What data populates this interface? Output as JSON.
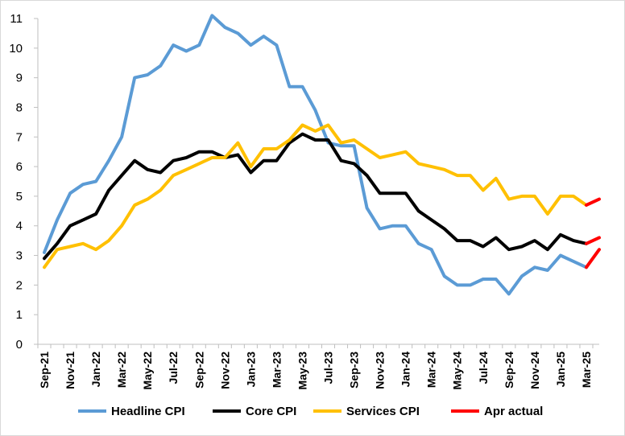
{
  "chart_data": {
    "type": "line",
    "title": "",
    "xlabel": "",
    "ylabel": "",
    "ylim": [
      0,
      11
    ],
    "yticks": [
      "0",
      "1",
      "2",
      "3",
      "4",
      "5",
      "6",
      "7",
      "8",
      "9",
      "10",
      "11"
    ],
    "grid": false,
    "legend_position": "bottom",
    "x": [
      "Sep-21",
      "Oct-21",
      "Nov-21",
      "Dec-21",
      "Jan-22",
      "Feb-22",
      "Mar-22",
      "Apr-22",
      "May-22",
      "Jun-22",
      "Jul-22",
      "Aug-22",
      "Sep-22",
      "Oct-22",
      "Nov-22",
      "Dec-22",
      "Jan-23",
      "Feb-23",
      "Mar-23",
      "Apr-23",
      "May-23",
      "Jun-23",
      "Jul-23",
      "Aug-23",
      "Sep-23",
      "Oct-23",
      "Nov-23",
      "Dec-23",
      "Jan-24",
      "Feb-24",
      "Mar-24",
      "Apr-24",
      "May-24",
      "Jun-24",
      "Jul-24",
      "Aug-24",
      "Sep-24",
      "Oct-24",
      "Nov-24",
      "Dec-24",
      "Jan-25",
      "Feb-25",
      "Mar-25",
      "Apr-25"
    ],
    "x_tick_labels": [
      "Sep-21",
      "Nov-21",
      "Jan-22",
      "Mar-22",
      "May-22",
      "Jul-22",
      "Sep-22",
      "Nov-22",
      "Jan-23",
      "Mar-23",
      "May-23",
      "Jul-23",
      "Sep-23",
      "Nov-23",
      "Jan-24",
      "Mar-24",
      "May-24",
      "Jul-24",
      "Sep-24",
      "Nov-24",
      "Jan-25",
      "Mar-25"
    ],
    "series": [
      {
        "name": "Headline CPI",
        "color": "#5b9bd5",
        "values": [
          3.1,
          4.2,
          5.1,
          5.4,
          5.5,
          6.2,
          7.0,
          9.0,
          9.1,
          9.4,
          10.1,
          9.9,
          10.1,
          11.1,
          10.7,
          10.5,
          10.1,
          10.4,
          10.1,
          8.7,
          8.7,
          7.9,
          6.8,
          6.7,
          6.7,
          4.6,
          3.9,
          4.0,
          4.0,
          3.4,
          3.2,
          2.3,
          2.0,
          2.0,
          2.2,
          2.2,
          1.7,
          2.3,
          2.6,
          2.5,
          3.0,
          2.8,
          2.6,
          null
        ]
      },
      {
        "name": "Core CPI",
        "color": "#000000",
        "values": [
          2.9,
          3.4,
          4.0,
          4.2,
          4.4,
          5.2,
          5.7,
          6.2,
          5.9,
          5.8,
          6.2,
          6.3,
          6.5,
          6.5,
          6.3,
          6.4,
          5.8,
          6.2,
          6.2,
          6.8,
          7.1,
          6.9,
          6.9,
          6.2,
          6.1,
          5.7,
          5.1,
          5.1,
          5.1,
          4.5,
          4.2,
          3.9,
          3.5,
          3.5,
          3.3,
          3.6,
          3.2,
          3.3,
          3.5,
          3.2,
          3.7,
          3.5,
          3.4,
          null
        ]
      },
      {
        "name": "Services CPI",
        "color": "#ffc000",
        "values": [
          2.6,
          3.2,
          3.3,
          3.4,
          3.2,
          3.5,
          4.0,
          4.7,
          4.9,
          5.2,
          5.7,
          5.9,
          6.1,
          6.3,
          6.3,
          6.8,
          6.0,
          6.6,
          6.6,
          6.9,
          7.4,
          7.2,
          7.4,
          6.8,
          6.9,
          6.6,
          6.3,
          6.4,
          6.5,
          6.1,
          6.0,
          5.9,
          5.7,
          5.7,
          5.2,
          5.6,
          4.9,
          5.0,
          5.0,
          4.4,
          5.0,
          5.0,
          4.7,
          null
        ]
      },
      {
        "name": "Apr actual",
        "color": "#ff0000",
        "segments": [
          {
            "of": "Headline CPI",
            "values": [
              2.6,
              3.2
            ]
          },
          {
            "of": "Core CPI",
            "values": [
              3.4,
              3.6
            ]
          },
          {
            "of": "Services CPI",
            "values": [
              4.7,
              4.9
            ]
          }
        ]
      }
    ],
    "legend": [
      "Headline CPI",
      "Core CPI",
      "Services CPI",
      "Apr actual"
    ]
  }
}
